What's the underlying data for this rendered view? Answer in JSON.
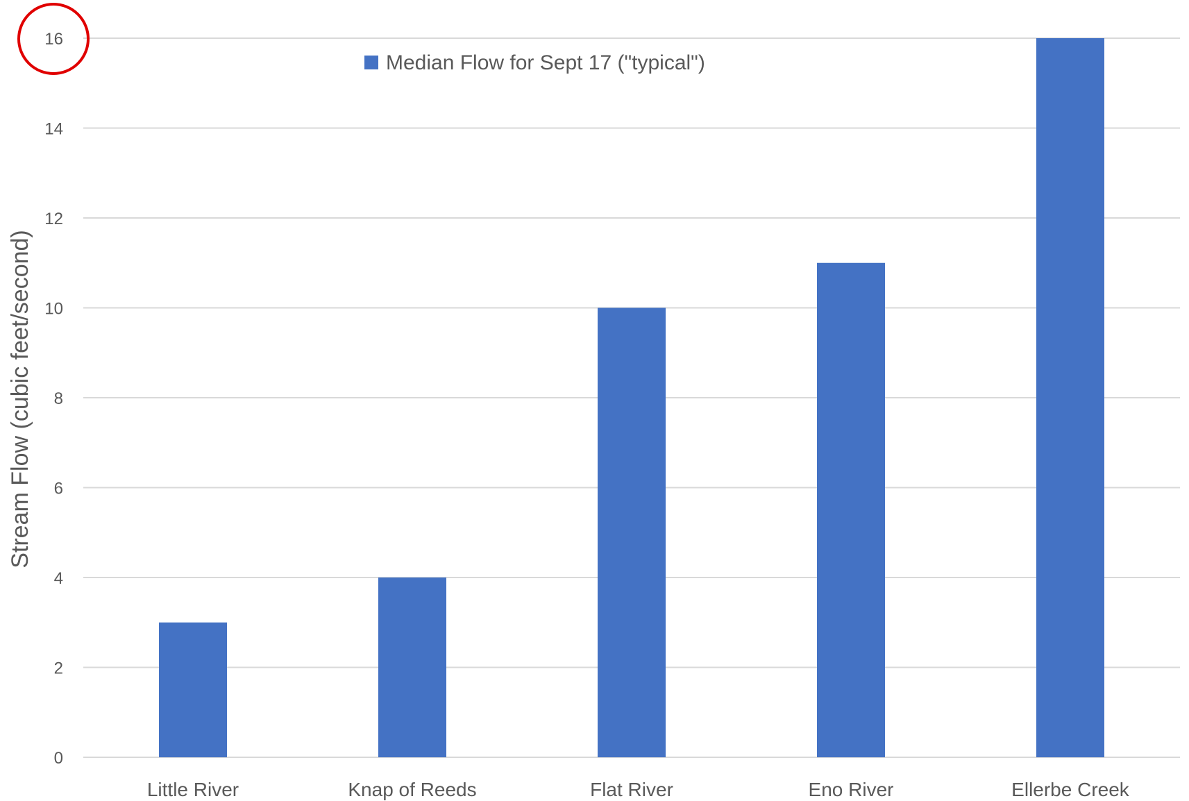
{
  "chart_data": {
    "type": "bar",
    "categories": [
      "Little River",
      "Knap of Reeds",
      "Flat River",
      "Eno River",
      "Ellerbe Creek"
    ],
    "series": [
      {
        "name": "Median Flow for Sept 17 (\"typical\")",
        "values": [
          3,
          4,
          10,
          11,
          16
        ],
        "color": "#4472C4"
      }
    ],
    "title": "",
    "xlabel": "",
    "ylabel": "Stream Flow (cubic feet/second)",
    "ylim": [
      0,
      16
    ],
    "yticks": [
      "0",
      "2",
      "4",
      "6",
      "8",
      "10",
      "12",
      "14",
      "16"
    ],
    "grid": true,
    "legend_position": "top",
    "annotation": {
      "shape": "circle",
      "target": "y-tick-16",
      "color": "#E00000"
    },
    "colors": {
      "gridline": "#D9D9D9",
      "axis_text": "#595959"
    }
  }
}
